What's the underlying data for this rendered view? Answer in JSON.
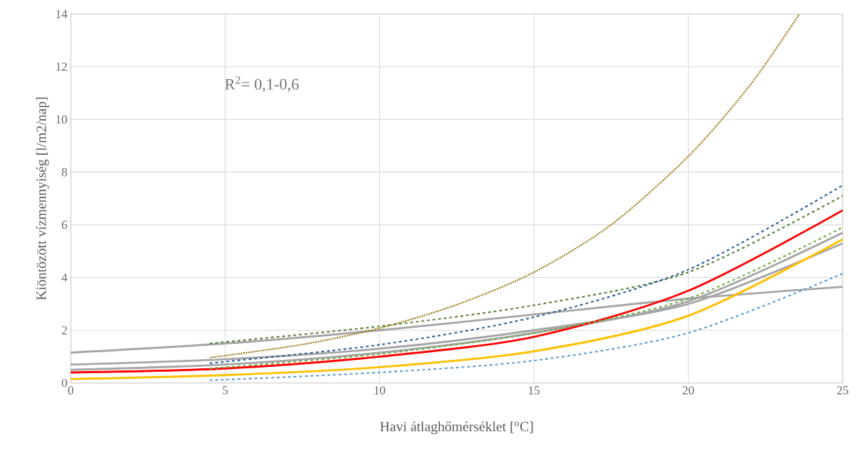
{
  "chart_data": {
    "type": "line",
    "xlabel": "Havi átlaghőmérséklet [$^{o}$C]",
    "ylabel": "Kiöntözött vízmennyiség [l/m2/nap]",
    "annotations": [
      "R$^{2}$= 0,1-0,6"
    ],
    "xlim": [
      0,
      25
    ],
    "xticks": [
      0,
      5,
      10,
      15,
      20,
      25
    ],
    "ylim": [
      0,
      14
    ],
    "yticks": [
      0,
      2,
      4,
      6,
      8,
      10,
      12,
      14
    ],
    "grid": true,
    "marker": "none",
    "series": [
      {
        "color": "#a5a5a5",
        "line_style": "solid",
        "x": [
          0,
          5,
          10,
          15,
          20,
          25
        ],
        "values": [
          1.15,
          1.5,
          2.0,
          2.6,
          3.2,
          3.65
        ]
      },
      {
        "color": "#a5a5a5",
        "line_style": "solid",
        "x": [
          0,
          5,
          10,
          15,
          20,
          25
        ],
        "values": [
          0.7,
          0.9,
          1.3,
          2.0,
          3.0,
          5.3
        ]
      },
      {
        "color": "#a5a5a5",
        "line_style": "solid",
        "x": [
          0,
          5,
          10,
          15,
          20,
          25
        ],
        "values": [
          0.5,
          0.7,
          1.15,
          1.9,
          3.1,
          5.7
        ]
      },
      {
        "color": "#9c7a1c",
        "line_style": "dotted",
        "x": [
          4.5,
          7.5,
          10,
          12.5,
          15,
          17.5,
          20,
          22,
          23.6
        ],
        "values": [
          0.96,
          1.46,
          2.08,
          2.97,
          4.2,
          6.0,
          8.6,
          11.3,
          14.0
        ]
      },
      {
        "color": "#548235",
        "line_style": "dashed",
        "x": [
          4.5,
          10,
          15,
          20,
          25
        ],
        "values": [
          1.5,
          2.15,
          2.95,
          4.2,
          7.1
        ]
      },
      {
        "color": "#2e5f9a",
        "line_style": "dashed",
        "x": [
          4.5,
          10,
          15,
          20,
          25
        ],
        "values": [
          0.75,
          1.45,
          2.5,
          4.3,
          7.5
        ]
      },
      {
        "color": "#ff0000",
        "line_style": "solid",
        "x": [
          0,
          5,
          10,
          15,
          20,
          25
        ],
        "values": [
          0.4,
          0.55,
          1.0,
          1.75,
          3.5,
          6.55
        ]
      },
      {
        "color": "#70ad47",
        "line_style": "dashed",
        "x": [
          4.5,
          10,
          15,
          20,
          25
        ],
        "values": [
          0.55,
          1.1,
          1.9,
          3.2,
          5.9
        ]
      },
      {
        "color": "#ffc000",
        "line_style": "solid",
        "x": [
          0,
          5,
          10,
          15,
          20,
          25
        ],
        "values": [
          0.15,
          0.3,
          0.6,
          1.2,
          2.55,
          5.45
        ]
      },
      {
        "color": "#5b9bd5",
        "line_style": "dashed",
        "x": [
          4.5,
          10,
          15,
          20,
          25
        ],
        "values": [
          0.1,
          0.4,
          0.85,
          1.9,
          4.15
        ]
      }
    ]
  }
}
